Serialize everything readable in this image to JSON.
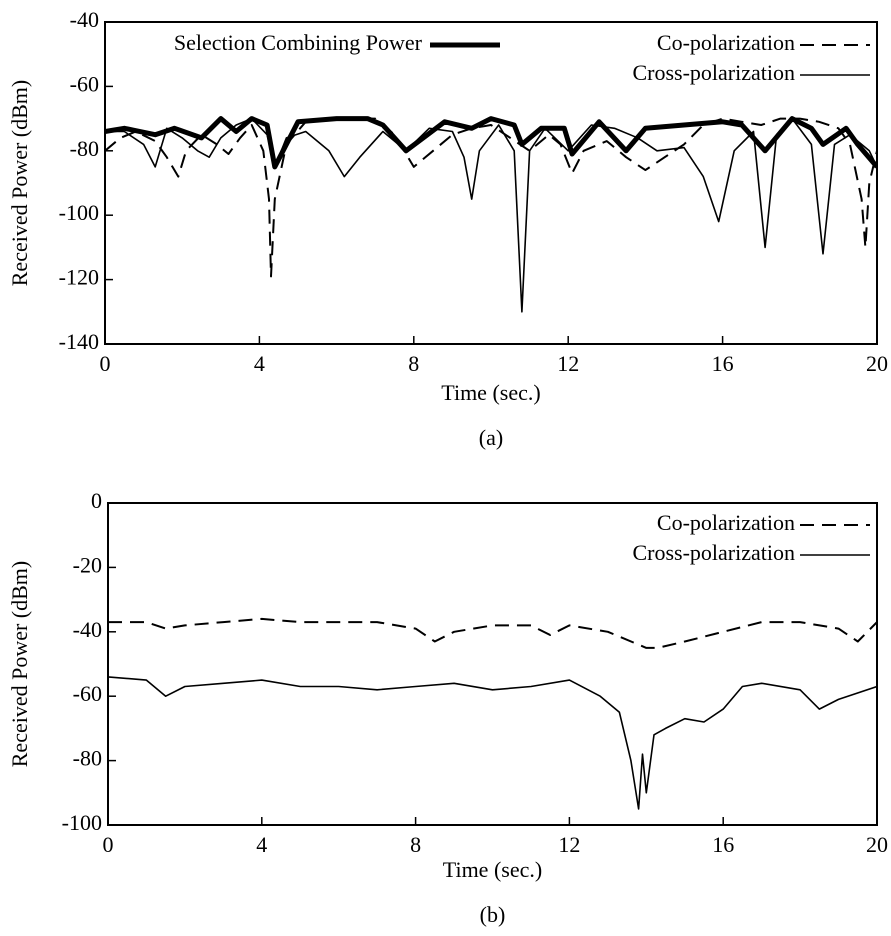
{
  "chart_data": [
    {
      "type": "line",
      "caption": "(a)",
      "xlabel": "Time (sec.)",
      "ylabel": "Received Power (dBm)",
      "xlim": [
        0,
        20
      ],
      "xticks": [
        0,
        4,
        8,
        12,
        16,
        20
      ],
      "ylim": [
        -140,
        -40
      ],
      "yticks": [
        -140,
        -120,
        -100,
        -80,
        -60,
        -40
      ],
      "series": [
        {
          "name": "Selection Combining Power",
          "color": "#000000",
          "linestyle": "thick",
          "x": [
            0,
            0.5,
            1.3,
            1.8,
            2.5,
            3,
            3.4,
            3.8,
            4.2,
            4.4,
            5,
            6,
            6.8,
            7.2,
            7.8,
            8.8,
            9.5,
            10,
            10.6,
            10.8,
            11.3,
            11.9,
            12.1,
            12.8,
            13.5,
            14,
            15,
            16,
            16.5,
            17.1,
            17.8,
            18.3,
            18.6,
            19.2,
            19.5,
            20
          ],
          "values": [
            -74,
            -73,
            -75,
            -73,
            -76,
            -70,
            -74,
            -70,
            -72,
            -85,
            -71,
            -70,
            -70,
            -72,
            -80,
            -71,
            -73,
            -70,
            -72,
            -78,
            -73,
            -73,
            -81,
            -71,
            -80,
            -73,
            -72,
            -71,
            -72,
            -80,
            -70,
            -73,
            -78,
            -73,
            -78,
            -85
          ]
        },
        {
          "name": "Co-polarization",
          "color": "#000000",
          "linestyle": "dashed",
          "x": [
            0,
            0.4,
            0.8,
            1.3,
            1.6,
            1.9,
            2.1,
            2.5,
            2.9,
            3.2,
            3.5,
            3.8,
            4.1,
            4.25,
            4.3,
            4.4,
            4.7,
            5.2,
            6,
            7,
            7.5,
            8,
            8.5,
            9,
            9.5,
            10,
            10.5,
            11,
            11.5,
            11.8,
            12.1,
            12.4,
            13,
            13.5,
            14,
            14.5,
            15,
            15.5,
            16,
            16.5,
            17,
            17.5,
            18,
            18.5,
            19,
            19.3,
            19.6,
            19.7,
            19.8,
            20
          ],
          "values": [
            -80,
            -76,
            -74,
            -77,
            -82,
            -88,
            -80,
            -75,
            -78,
            -81,
            -76,
            -72,
            -80,
            -95,
            -119,
            -95,
            -78,
            -71,
            -70,
            -70,
            -75,
            -85,
            -80,
            -75,
            -73,
            -72,
            -76,
            -80,
            -75,
            -78,
            -87,
            -80,
            -77,
            -82,
            -86,
            -82,
            -78,
            -72,
            -70,
            -71,
            -72,
            -70,
            -70,
            -71,
            -73,
            -78,
            -95,
            -110,
            -90,
            -80
          ]
        },
        {
          "name": "Cross-polarization",
          "color": "#000000",
          "linestyle": "solid",
          "x": [
            0,
            0.5,
            1,
            1.3,
            1.6,
            2,
            2.4,
            2.7,
            3,
            3.4,
            3.8,
            4.2,
            4.4,
            4.7,
            5.2,
            5.8,
            6.2,
            6.6,
            7.2,
            7.8,
            8.4,
            9,
            9.3,
            9.5,
            9.7,
            10.2,
            10.6,
            10.8,
            11,
            11.4,
            12,
            12.6,
            13.2,
            13.8,
            14.3,
            15,
            15.5,
            15.9,
            16.3,
            16.8,
            17.1,
            17.4,
            17.8,
            18.3,
            18.6,
            18.9,
            19.3,
            19.8,
            20
          ],
          "values": [
            -74,
            -74,
            -78,
            -85,
            -73,
            -76,
            -80,
            -82,
            -76,
            -72,
            -70,
            -75,
            -85,
            -76,
            -74,
            -80,
            -88,
            -82,
            -74,
            -80,
            -73,
            -74,
            -82,
            -95,
            -80,
            -72,
            -80,
            -130,
            -80,
            -73,
            -80,
            -72,
            -73,
            -76,
            -80,
            -79,
            -88,
            -102,
            -80,
            -74,
            -110,
            -75,
            -70,
            -78,
            -112,
            -78,
            -75,
            -80,
            -85
          ]
        }
      ]
    },
    {
      "type": "line",
      "caption": "(b)",
      "xlabel": "Time (sec.)",
      "ylabel": "Received Power (dBm)",
      "xlim": [
        0,
        20
      ],
      "xticks": [
        0,
        4,
        8,
        12,
        16,
        20
      ],
      "ylim": [
        -100,
        0
      ],
      "yticks": [
        -100,
        -80,
        -60,
        -40,
        -20,
        0
      ],
      "series": [
        {
          "name": "Co-polarization",
          "color": "#000000",
          "linestyle": "dashed",
          "x": [
            0,
            1,
            1.5,
            2,
            3,
            4,
            5,
            6,
            7,
            8,
            8.5,
            9,
            10,
            11,
            11.5,
            12,
            13,
            14,
            14.3,
            15,
            16,
            17,
            18,
            19,
            19.5,
            20
          ],
          "values": [
            -37,
            -37,
            -39,
            -38,
            -37,
            -36,
            -37,
            -37,
            -37,
            -39,
            -43,
            -40,
            -38,
            -38,
            -41,
            -38,
            -40,
            -45,
            -45,
            -43,
            -40,
            -37,
            -37,
            -39,
            -43,
            -37
          ]
        },
        {
          "name": "Cross-polarization",
          "color": "#000000",
          "linestyle": "solid",
          "x": [
            0,
            1,
            1.5,
            2,
            3,
            4,
            5,
            6,
            7,
            8,
            9,
            10,
            11,
            12,
            12.8,
            13.3,
            13.6,
            13.8,
            13.9,
            14,
            14.2,
            14.5,
            15,
            15.5,
            16,
            16.5,
            17,
            18,
            18.5,
            19,
            20
          ],
          "values": [
            -54,
            -55,
            -60,
            -57,
            -56,
            -55,
            -57,
            -57,
            -58,
            -57,
            -56,
            -58,
            -57,
            -55,
            -60,
            -65,
            -80,
            -95,
            -78,
            -90,
            -72,
            -70,
            -67,
            -68,
            -64,
            -57,
            -56,
            -58,
            -64,
            -61,
            -57
          ]
        }
      ]
    }
  ]
}
